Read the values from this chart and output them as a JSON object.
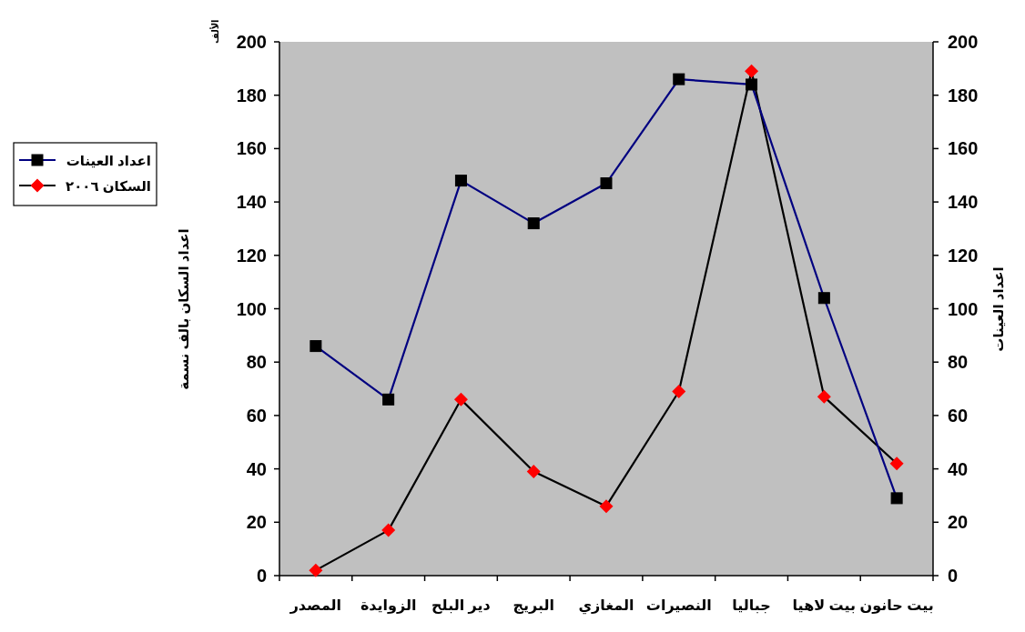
{
  "chart_data": {
    "type": "line",
    "ylabel": "اعداد السكان بالف نسمة",
    "y2label": "اعداد العينات",
    "annotations": [
      "الألف"
    ],
    "categories": [
      "المصدر",
      "الزوايدة",
      "دير البلح",
      "البريج",
      "المغازي",
      "النصيرات",
      "جباليا",
      "بيت لاهيا",
      "بيت حانون"
    ],
    "series": [
      {
        "name": "اعداد العينات",
        "color": "#000080",
        "marker": "square",
        "axis": "y2",
        "values": [
          86,
          66,
          148,
          132,
          147,
          186,
          184,
          104,
          29
        ]
      },
      {
        "name": "السكان ٢٠٠٦",
        "color": "#000000",
        "marker": "diamond",
        "values": [
          2,
          17,
          66,
          39,
          26,
          69,
          189,
          67,
          42
        ]
      }
    ],
    "ylim": [
      0,
      200
    ],
    "yticks": [
      0,
      20,
      40,
      60,
      80,
      100,
      120,
      140,
      160,
      180,
      200
    ],
    "y2lim": [
      0,
      200
    ],
    "y2ticks": [
      0,
      20,
      40,
      60,
      80,
      100,
      120,
      140,
      160,
      180,
      200
    ],
    "legend": "left",
    "grid": false
  }
}
